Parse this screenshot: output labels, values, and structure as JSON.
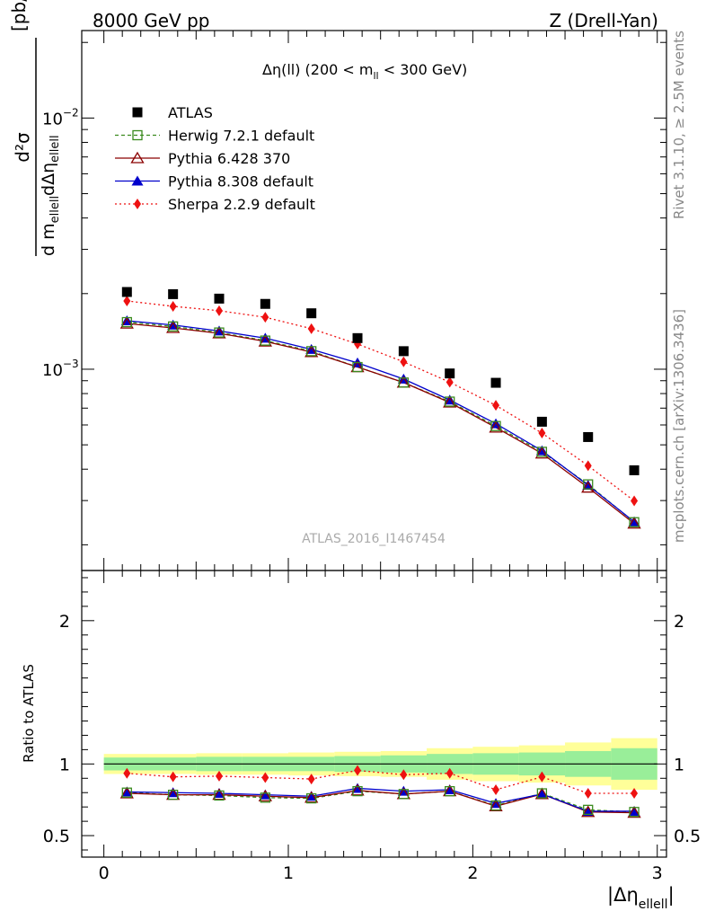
{
  "header": {
    "left": "8000 GeV pp",
    "right": "Z (Drell-Yan)"
  },
  "side_text": {
    "rivet": "Rivet 3.1.10, ≥ 2.5M events",
    "mcplots": "mcplots.cern.ch [arXiv:1306.3436]"
  },
  "watermark": "ATLAS_2016_I1467454",
  "colors": {
    "atlas": "#000000",
    "herwig": "#3a8a1e",
    "pythia6": "#8b0000",
    "pythia8": "#0000cc",
    "sherpa": "#ee1111",
    "band_inner": "#99ee99",
    "band_outer": "#ffff99"
  },
  "chart_data": [
    {
      "type": "scatter",
      "panel": "main",
      "title": "Δη(ll) (200 < m_ll < 300 GeV)",
      "title_parts": {
        "pre": "Δη(ll) (200 < m",
        "sub": "ll",
        "post": " < 300 GeV)"
      },
      "ylabel": "d²σ / d m_ellell dΔη_ellell [pb/GeV]",
      "ylabel_parts": {
        "numer": "d²σ",
        "denom_d1": "d m",
        "denom_sub1": "ellell",
        "denom_d2": "dΔη",
        "denom_sub2": "ellell",
        "unit": "[pb/GeV]"
      },
      "yscale": "log",
      "xlim": [
        -0.12,
        3.05
      ],
      "ylim": [
        0.000158,
        0.0223
      ],
      "y_tick_labels": [
        {
          "value": 0.01,
          "base": "10",
          "exp": "−2"
        },
        {
          "value": 0.001,
          "base": "10",
          "exp": "−3"
        }
      ],
      "legend_position": "top-left",
      "x": [
        0.125,
        0.375,
        0.625,
        0.875,
        1.125,
        1.375,
        1.625,
        1.875,
        2.125,
        2.375,
        2.625,
        2.875
      ],
      "series": [
        {
          "name": "ATLAS",
          "key": "atlas",
          "values": [
            0.00203,
            0.00199,
            0.00191,
            0.00182,
            0.00167,
            0.00133,
            0.00118,
            0.000962,
            0.000883,
            0.000618,
            0.000537,
            0.000396
          ]
        },
        {
          "name": "Herwig 7.2.1 default",
          "key": "herwig",
          "values": [
            0.00154,
            0.00148,
            0.0014,
            0.0013,
            0.00118,
            0.00102,
            0.000885,
            0.000743,
            0.000594,
            0.000469,
            0.000348,
            0.000246
          ]
        },
        {
          "name": "Pythia 6.428 370",
          "key": "pythia6",
          "values": [
            0.00152,
            0.00146,
            0.00139,
            0.00129,
            0.00117,
            0.00102,
            0.000885,
            0.000737,
            0.000586,
            0.000462,
            0.000338,
            0.000243
          ]
        },
        {
          "name": "Pythia 8.308 default",
          "key": "pythia8",
          "values": [
            0.00156,
            0.0015,
            0.00142,
            0.00133,
            0.0012,
            0.00106,
            0.000914,
            0.000754,
            0.000607,
            0.000474,
            0.000345,
            0.000247
          ]
        },
        {
          "name": "Sherpa 2.2.9 default",
          "key": "sherpa",
          "values": [
            0.00187,
            0.00178,
            0.00171,
            0.00161,
            0.00145,
            0.00126,
            0.00107,
            0.000888,
            0.000718,
            0.000557,
            0.000413,
            0.000299
          ]
        }
      ]
    },
    {
      "type": "line",
      "panel": "ratio",
      "ylabel": "Ratio to ATLAS",
      "xlabel": "|Δη_ellell|",
      "xlabel_parts": {
        "main": "|Δη",
        "sub": "ellell",
        "end": "|"
      },
      "xlim": [
        -0.12,
        3.05
      ],
      "ylim": [
        0.35,
        2.35
      ],
      "x_ticks": [
        0,
        1,
        2,
        3
      ],
      "y_ticks": [
        0.5,
        1,
        2
      ],
      "x_tick_labels": [
        "0",
        "1",
        "2",
        "3"
      ],
      "y_tick_labels": [
        "0.5",
        "1",
        "2"
      ],
      "x": [
        0.125,
        0.375,
        0.625,
        0.875,
        1.125,
        1.375,
        1.625,
        1.875,
        2.125,
        2.375,
        2.625,
        2.875
      ],
      "bin_edges": [
        0.0,
        0.25,
        0.5,
        0.75,
        1.0,
        1.25,
        1.5,
        1.75,
        2.0,
        2.25,
        2.5,
        2.75,
        3.0
      ],
      "band_inner": [
        0.045,
        0.045,
        0.05,
        0.05,
        0.05,
        0.055,
        0.06,
        0.07,
        0.075,
        0.08,
        0.09,
        0.11
      ],
      "band_outer": [
        0.07,
        0.07,
        0.075,
        0.075,
        0.08,
        0.085,
        0.09,
        0.11,
        0.12,
        0.13,
        0.15,
        0.18
      ],
      "series": [
        {
          "name": "Herwig 7.2.1 default",
          "key": "herwig",
          "values": [
            0.8,
            0.785,
            0.78,
            0.765,
            0.76,
            0.81,
            0.79,
            0.81,
            0.71,
            0.795,
            0.68,
            0.665
          ]
        },
        {
          "name": "Pythia 6.428 370",
          "key": "pythia6",
          "values": [
            0.795,
            0.785,
            0.785,
            0.775,
            0.765,
            0.815,
            0.79,
            0.81,
            0.705,
            0.79,
            0.665,
            0.66
          ]
        },
        {
          "name": "Pythia 8.308 default",
          "key": "pythia8",
          "values": [
            0.805,
            0.8,
            0.795,
            0.785,
            0.775,
            0.83,
            0.81,
            0.82,
            0.725,
            0.79,
            0.67,
            0.67
          ]
        },
        {
          "name": "Sherpa 2.2.9 default",
          "key": "sherpa",
          "values": [
            0.935,
            0.91,
            0.915,
            0.905,
            0.895,
            0.955,
            0.925,
            0.935,
            0.82,
            0.91,
            0.795,
            0.795
          ]
        }
      ]
    }
  ]
}
